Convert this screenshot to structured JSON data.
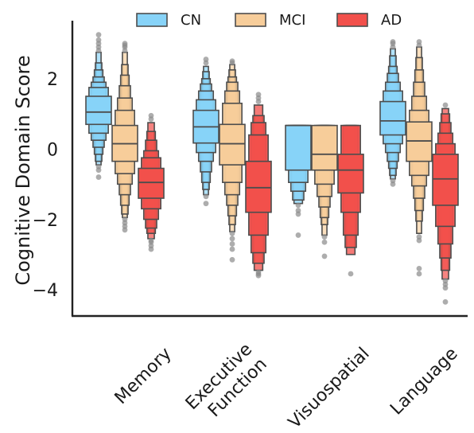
{
  "chart_data": {
    "type": "boxen",
    "ylabel": "Cognitive Domain Score",
    "xlabel": "",
    "ylim": [
      -4.7,
      3.7
    ],
    "yticks": [
      2,
      0,
      -2,
      -4
    ],
    "ytick_labels": [
      "2",
      "0",
      "−2",
      "−4"
    ],
    "categories": [
      {
        "label_lines": [
          "Memory"
        ]
      },
      {
        "label_lines": [
          "Executive",
          "Function"
        ]
      },
      {
        "label_lines": [
          "Visuospatial"
        ]
      },
      {
        "label_lines": [
          "Language"
        ]
      }
    ],
    "legend": {
      "position": "top",
      "items": [
        {
          "name": "CN",
          "color": "#87d3f8"
        },
        {
          "name": "MCI",
          "color": "#f7cd9a"
        },
        {
          "name": "AD",
          "color": "#f2504b"
        }
      ]
    },
    "series": [
      {
        "name": "CN",
        "color": "#87d3f8",
        "groups": [
          {
            "median": 1.1,
            "letter_values": [
              [
                0.75,
                1.55
              ],
              [
                0.5,
                1.8
              ],
              [
                0.3,
                1.95
              ],
              [
                0.1,
                2.1
              ],
              [
                -0.1,
                2.3
              ],
              [
                -0.3,
                2.5
              ],
              [
                -0.4,
                2.8
              ]
            ],
            "outliers": [
              -0.75,
              -0.55,
              -0.45,
              2.85,
              2.95,
              3.05,
              3.15,
              3.3
            ]
          },
          {
            "median": 0.68,
            "letter_values": [
              [
                0.22,
                1.15
              ],
              [
                -0.05,
                1.45
              ],
              [
                -0.3,
                1.7
              ],
              [
                -0.6,
                1.9
              ],
              [
                -0.9,
                2.05
              ],
              [
                -1.1,
                2.25
              ],
              [
                -1.25,
                2.4
              ]
            ],
            "outliers": [
              -1.3,
              -1.5,
              2.5,
              2.6
            ]
          },
          {
            "median": 0.72,
            "letter_values": [
              [
                -0.55,
                0.72
              ],
              [
                -0.9,
                0.72
              ],
              [
                -1.15,
                0.72
              ],
              [
                -1.4,
                0.72
              ],
              [
                -1.5,
                0.72
              ]
            ],
            "outliers": [
              -1.55,
              -1.7,
              -1.8,
              -2.4
            ]
          },
          {
            "median": 0.85,
            "letter_values": [
              [
                0.45,
                1.4
              ],
              [
                0.2,
                1.7
              ],
              [
                -0.05,
                1.95
              ],
              [
                -0.3,
                2.2
              ],
              [
                -0.5,
                2.4
              ],
              [
                -0.7,
                2.7
              ],
              [
                -0.8,
                2.9
              ]
            ],
            "outliers": [
              -0.85,
              -0.95,
              2.95,
              3.05,
              3.1
            ]
          }
        ]
      },
      {
        "name": "MCI",
        "color": "#f7cd9a",
        "groups": [
          {
            "median": 0.2,
            "letter_values": [
              [
                -0.3,
                0.72
              ],
              [
                -0.65,
                1.15
              ],
              [
                -0.95,
                1.5
              ],
              [
                -1.25,
                1.85
              ],
              [
                -1.55,
                2.15
              ],
              [
                -1.8,
                2.45
              ],
              [
                -1.9,
                2.8
              ]
            ],
            "outliers": [
              -1.95,
              -2.05,
              -2.15,
              -2.25,
              2.85,
              2.95,
              3.0,
              3.05
            ]
          },
          {
            "median": 0.2,
            "letter_values": [
              [
                -0.4,
                0.75
              ],
              [
                -0.9,
                1.35
              ],
              [
                -1.25,
                1.7
              ],
              [
                -1.55,
                1.95
              ],
              [
                -1.85,
                2.1
              ],
              [
                -2.1,
                2.3
              ],
              [
                -2.3,
                2.45
              ]
            ],
            "outliers": [
              -2.35,
              -2.5,
              -2.65,
              -2.8,
              -3.1,
              2.5,
              2.55
            ]
          },
          {
            "median": -0.1,
            "letter_values": [
              [
                -0.55,
                0.72
              ],
              [
                -0.95,
                0.72
              ],
              [
                -1.3,
                0.72
              ],
              [
                -1.6,
                0.72
              ],
              [
                -1.9,
                0.72
              ],
              [
                -2.1,
                0.72
              ],
              [
                -2.4,
                0.72
              ]
            ],
            "outliers": [
              -2.45,
              -2.6,
              -3.0
            ]
          },
          {
            "median": 0.28,
            "letter_values": [
              [
                -0.3,
                0.82
              ],
              [
                -0.7,
                1.15
              ],
              [
                -1.0,
                1.55
              ],
              [
                -1.35,
                1.95
              ],
              [
                -1.7,
                2.3
              ],
              [
                -2.0,
                2.65
              ],
              [
                -2.35,
                2.95
              ]
            ],
            "outliers": [
              -2.45,
              -2.55,
              -3.35,
              -3.5,
              3.0,
              3.1
            ]
          }
        ]
      },
      {
        "name": "AD",
        "color": "#f2504b",
        "groups": [
          {
            "median": -0.9,
            "letter_values": [
              [
                -1.35,
                -0.5
              ],
              [
                -1.65,
                -0.2
              ],
              [
                -1.95,
                0.0
              ],
              [
                -2.2,
                0.3
              ],
              [
                -2.35,
                0.55
              ],
              [
                -2.5,
                0.8
              ]
            ],
            "outliers": [
              -2.55,
              -2.6,
              -2.7,
              -2.8,
              0.9,
              1.0
            ]
          },
          {
            "median": -1.05,
            "letter_values": [
              [
                -1.75,
                -0.3
              ],
              [
                -2.4,
                0.45
              ],
              [
                -2.9,
                0.8
              ],
              [
                -3.2,
                1.0
              ],
              [
                -3.4,
                1.3
              ]
            ],
            "outliers": [
              -3.45,
              -3.5,
              -3.55,
              1.4,
              1.5,
              1.6
            ]
          },
          {
            "median": -0.55,
            "letter_values": [
              [
                -1.2,
                -0.1
              ],
              [
                -1.75,
                0.72
              ],
              [
                -2.4,
                0.72
              ],
              [
                -2.75,
                0.72
              ],
              [
                -2.95,
                0.72
              ]
            ],
            "outliers": [
              -3.5
            ]
          },
          {
            "median": -0.8,
            "letter_values": [
              [
                -1.55,
                -0.1
              ],
              [
                -2.15,
                0.2
              ],
              [
                -2.65,
                0.5
              ],
              [
                -3.05,
                0.8
              ],
              [
                -3.4,
                1.05
              ],
              [
                -3.65,
                1.2
              ]
            ],
            "outliers": [
              -3.7,
              -3.8,
              -3.9,
              -4.3,
              1.3
            ]
          }
        ]
      }
    ],
    "grid": false
  }
}
